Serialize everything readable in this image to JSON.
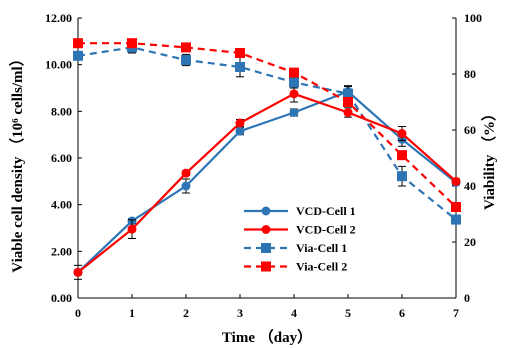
{
  "chart_data": {
    "type": "line",
    "xlabel": "Time （day）",
    "ylabel_left": "Viable cell density （10⁶ cells/ml）",
    "ylabel_right": "Viability （%）",
    "x": [
      0,
      1,
      2,
      3,
      4,
      5,
      6,
      7
    ],
    "x_ticks": [
      "0",
      "1",
      "2",
      "3",
      "4",
      "5",
      "6",
      "7"
    ],
    "ylim_left": [
      0,
      12
    ],
    "y_ticks_left": [
      "0.00",
      "2.00",
      "4.00",
      "6.00",
      "8.00",
      "10.00",
      "12.00"
    ],
    "ylim_right": [
      0,
      100
    ],
    "y_ticks_right": [
      "0",
      "20",
      "40",
      "60",
      "80",
      "100"
    ],
    "grid": false,
    "legend_position": "center-right",
    "series": [
      {
        "name": "VCD-Cell 1",
        "axis": "left",
        "color": "#2e75b6",
        "dash": "solid",
        "marker": "circle",
        "values": [
          1.1,
          3.3,
          4.8,
          7.15,
          7.95,
          8.85,
          6.8,
          4.95
        ],
        "errors": [
          0.3,
          0.1,
          0.3,
          0.15,
          0.15,
          0.25,
          0.3,
          0.1
        ]
      },
      {
        "name": "VCD-Cell 2",
        "axis": "left",
        "color": "#ff0000",
        "dash": "solid",
        "marker": "circle",
        "values": [
          1.1,
          2.95,
          5.35,
          7.5,
          8.75,
          7.95,
          7.05,
          5.0
        ],
        "errors": [
          0.1,
          0.4,
          0.1,
          0.15,
          0.35,
          0.2,
          0.3,
          0.1
        ]
      },
      {
        "name": "Via-Cell 1",
        "axis": "right",
        "color": "#2e75b6",
        "dash": "dashed",
        "marker": "square",
        "values": [
          86.5,
          89.5,
          85,
          82.5,
          77,
          73,
          43.5,
          28
        ],
        "errors": [
          1.5,
          2,
          2,
          3.5,
          2,
          2.5,
          3.5,
          1.5
        ]
      },
      {
        "name": "Via-Cell 2",
        "axis": "right",
        "color": "#ff0000",
        "dash": "dashed",
        "marker": "square",
        "values": [
          91,
          91,
          89.5,
          87.5,
          80.5,
          70,
          51,
          32.5
        ],
        "errors": [
          1,
          1,
          1,
          1,
          1,
          1.5,
          1.5,
          1.5
        ]
      }
    ]
  }
}
